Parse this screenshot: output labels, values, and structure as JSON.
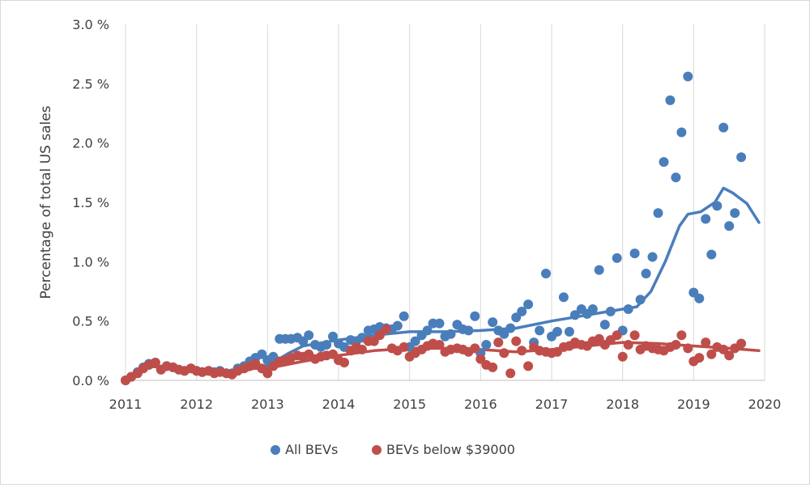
{
  "chart_data": {
    "type": "scatter",
    "title": "",
    "xlabel": "",
    "ylabel": "Percentage of total US sales",
    "xlim": [
      2011,
      2020
    ],
    "ylim": [
      0,
      3.0
    ],
    "grid": "vertical",
    "legend_position": "bottom",
    "x_ticks": [
      2011,
      2012,
      2013,
      2014,
      2015,
      2016,
      2017,
      2018,
      2019,
      2020
    ],
    "x_tick_labels": [
      "2011",
      "2012",
      "2013",
      "2014",
      "2015",
      "2016",
      "2017",
      "2018",
      "2019",
      "2020"
    ],
    "y_ticks": [
      0,
      0.5,
      1.0,
      1.5,
      2.0,
      2.5,
      3.0
    ],
    "y_tick_labels": [
      "0.0 %",
      "0.5 %",
      "1.0 %",
      "1.5 %",
      "2.0 %",
      "2.5 %",
      "3.0 %"
    ],
    "series": [
      {
        "name": "All BEVs",
        "color": "#4a7ebb",
        "points": [
          [
            2011.0,
            0.0
          ],
          [
            2011.08,
            0.03
          ],
          [
            2011.17,
            0.07
          ],
          [
            2011.25,
            0.11
          ],
          [
            2011.33,
            0.14
          ],
          [
            2011.42,
            0.15
          ],
          [
            2011.5,
            0.09
          ],
          [
            2011.58,
            0.12
          ],
          [
            2011.67,
            0.11
          ],
          [
            2011.75,
            0.09
          ],
          [
            2011.83,
            0.08
          ],
          [
            2011.92,
            0.1
          ],
          [
            2012.0,
            0.08
          ],
          [
            2012.08,
            0.07
          ],
          [
            2012.17,
            0.08
          ],
          [
            2012.25,
            0.07
          ],
          [
            2012.33,
            0.08
          ],
          [
            2012.42,
            0.06
          ],
          [
            2012.5,
            0.06
          ],
          [
            2012.58,
            0.1
          ],
          [
            2012.67,
            0.12
          ],
          [
            2012.75,
            0.16
          ],
          [
            2012.83,
            0.19
          ],
          [
            2012.92,
            0.22
          ],
          [
            2013.0,
            0.17
          ],
          [
            2013.08,
            0.2
          ],
          [
            2013.17,
            0.35
          ],
          [
            2013.25,
            0.35
          ],
          [
            2013.33,
            0.35
          ],
          [
            2013.42,
            0.36
          ],
          [
            2013.5,
            0.33
          ],
          [
            2013.58,
            0.38
          ],
          [
            2013.67,
            0.3
          ],
          [
            2013.75,
            0.28
          ],
          [
            2013.83,
            0.3
          ],
          [
            2013.92,
            0.37
          ],
          [
            2014.0,
            0.31
          ],
          [
            2014.08,
            0.28
          ],
          [
            2014.17,
            0.34
          ],
          [
            2014.25,
            0.33
          ],
          [
            2014.33,
            0.36
          ],
          [
            2014.42,
            0.42
          ],
          [
            2014.5,
            0.43
          ],
          [
            2014.58,
            0.45
          ],
          [
            2014.67,
            0.44
          ],
          [
            2014.75,
            0.43
          ],
          [
            2014.83,
            0.46
          ],
          [
            2014.92,
            0.54
          ],
          [
            2015.0,
            0.28
          ],
          [
            2015.08,
            0.33
          ],
          [
            2015.17,
            0.38
          ],
          [
            2015.25,
            0.42
          ],
          [
            2015.33,
            0.48
          ],
          [
            2015.42,
            0.48
          ],
          [
            2015.5,
            0.37
          ],
          [
            2015.58,
            0.39
          ],
          [
            2015.67,
            0.47
          ],
          [
            2015.75,
            0.43
          ],
          [
            2015.83,
            0.42
          ],
          [
            2015.92,
            0.54
          ],
          [
            2016.0,
            0.23
          ],
          [
            2016.08,
            0.3
          ],
          [
            2016.17,
            0.49
          ],
          [
            2016.25,
            0.42
          ],
          [
            2016.33,
            0.39
          ],
          [
            2016.42,
            0.44
          ],
          [
            2016.5,
            0.53
          ],
          [
            2016.58,
            0.58
          ],
          [
            2016.67,
            0.64
          ],
          [
            2016.75,
            0.32
          ],
          [
            2016.83,
            0.42
          ],
          [
            2016.92,
            0.9
          ],
          [
            2017.0,
            0.37
          ],
          [
            2017.08,
            0.41
          ],
          [
            2017.17,
            0.7
          ],
          [
            2017.25,
            0.41
          ],
          [
            2017.33,
            0.55
          ],
          [
            2017.42,
            0.6
          ],
          [
            2017.5,
            0.56
          ],
          [
            2017.58,
            0.6
          ],
          [
            2017.67,
            0.93
          ],
          [
            2017.75,
            0.47
          ],
          [
            2017.83,
            0.58
          ],
          [
            2017.92,
            1.03
          ],
          [
            2018.0,
            0.42
          ],
          [
            2018.08,
            0.6
          ],
          [
            2018.17,
            1.07
          ],
          [
            2018.25,
            0.68
          ],
          [
            2018.33,
            0.9
          ],
          [
            2018.42,
            1.04
          ],
          [
            2018.5,
            1.41
          ],
          [
            2018.58,
            1.84
          ],
          [
            2018.67,
            2.36
          ],
          [
            2018.75,
            1.71
          ],
          [
            2018.83,
            2.09
          ],
          [
            2018.92,
            2.56
          ],
          [
            2019.0,
            0.74
          ],
          [
            2019.08,
            0.69
          ],
          [
            2019.17,
            1.36
          ],
          [
            2019.25,
            1.06
          ],
          [
            2019.33,
            1.47
          ],
          [
            2019.42,
            2.13
          ],
          [
            2019.5,
            1.3
          ],
          [
            2019.58,
            1.41
          ],
          [
            2019.67,
            1.88
          ]
        ],
        "trend": [
          [
            2011.0,
            0.0
          ],
          [
            2011.3,
            0.12
          ],
          [
            2011.5,
            0.11
          ],
          [
            2012.0,
            0.08
          ],
          [
            2012.5,
            0.06
          ],
          [
            2012.8,
            0.13
          ],
          [
            2013.0,
            0.12
          ],
          [
            2013.3,
            0.23
          ],
          [
            2013.5,
            0.29
          ],
          [
            2014.0,
            0.34
          ],
          [
            2014.5,
            0.38
          ],
          [
            2015.0,
            0.41
          ],
          [
            2015.5,
            0.41
          ],
          [
            2016.0,
            0.42
          ],
          [
            2016.5,
            0.44
          ],
          [
            2017.0,
            0.5
          ],
          [
            2017.5,
            0.55
          ],
          [
            2017.8,
            0.58
          ],
          [
            2018.0,
            0.6
          ],
          [
            2018.2,
            0.62
          ],
          [
            2018.4,
            0.75
          ],
          [
            2018.6,
            1.0
          ],
          [
            2018.8,
            1.3
          ],
          [
            2018.92,
            1.4
          ],
          [
            2019.1,
            1.42
          ],
          [
            2019.3,
            1.5
          ],
          [
            2019.42,
            1.62
          ],
          [
            2019.55,
            1.58
          ],
          [
            2019.75,
            1.49
          ],
          [
            2019.92,
            1.33
          ]
        ]
      },
      {
        "name": "BEVs below $39000",
        "color": "#bf4e4b",
        "points": [
          [
            2011.0,
            0.0
          ],
          [
            2011.08,
            0.03
          ],
          [
            2011.17,
            0.06
          ],
          [
            2011.25,
            0.1
          ],
          [
            2011.33,
            0.13
          ],
          [
            2011.42,
            0.15
          ],
          [
            2011.5,
            0.09
          ],
          [
            2011.58,
            0.12
          ],
          [
            2011.67,
            0.11
          ],
          [
            2011.75,
            0.09
          ],
          [
            2011.83,
            0.08
          ],
          [
            2011.92,
            0.1
          ],
          [
            2012.0,
            0.08
          ],
          [
            2012.08,
            0.07
          ],
          [
            2012.17,
            0.08
          ],
          [
            2012.25,
            0.06
          ],
          [
            2012.33,
            0.07
          ],
          [
            2012.42,
            0.06
          ],
          [
            2012.5,
            0.05
          ],
          [
            2012.58,
            0.08
          ],
          [
            2012.67,
            0.1
          ],
          [
            2012.75,
            0.12
          ],
          [
            2012.83,
            0.14
          ],
          [
            2012.92,
            0.1
          ],
          [
            2013.0,
            0.06
          ],
          [
            2013.08,
            0.12
          ],
          [
            2013.17,
            0.16
          ],
          [
            2013.25,
            0.17
          ],
          [
            2013.33,
            0.19
          ],
          [
            2013.42,
            0.21
          ],
          [
            2013.5,
            0.2
          ],
          [
            2013.58,
            0.22
          ],
          [
            2013.67,
            0.18
          ],
          [
            2013.75,
            0.2
          ],
          [
            2013.83,
            0.21
          ],
          [
            2013.92,
            0.22
          ],
          [
            2014.0,
            0.17
          ],
          [
            2014.08,
            0.15
          ],
          [
            2014.17,
            0.25
          ],
          [
            2014.25,
            0.28
          ],
          [
            2014.33,
            0.26
          ],
          [
            2014.42,
            0.33
          ],
          [
            2014.5,
            0.33
          ],
          [
            2014.58,
            0.38
          ],
          [
            2014.67,
            0.43
          ],
          [
            2014.75,
            0.27
          ],
          [
            2014.83,
            0.25
          ],
          [
            2014.92,
            0.28
          ],
          [
            2015.0,
            0.2
          ],
          [
            2015.08,
            0.23
          ],
          [
            2015.17,
            0.26
          ],
          [
            2015.25,
            0.29
          ],
          [
            2015.33,
            0.31
          ],
          [
            2015.42,
            0.3
          ],
          [
            2015.5,
            0.24
          ],
          [
            2015.58,
            0.26
          ],
          [
            2015.67,
            0.27
          ],
          [
            2015.75,
            0.26
          ],
          [
            2015.83,
            0.24
          ],
          [
            2015.92,
            0.27
          ],
          [
            2016.0,
            0.18
          ],
          [
            2016.08,
            0.13
          ],
          [
            2016.17,
            0.11
          ],
          [
            2016.25,
            0.32
          ],
          [
            2016.33,
            0.23
          ],
          [
            2016.42,
            0.06
          ],
          [
            2016.5,
            0.33
          ],
          [
            2016.58,
            0.25
          ],
          [
            2016.67,
            0.12
          ],
          [
            2016.75,
            0.28
          ],
          [
            2016.83,
            0.25
          ],
          [
            2016.92,
            0.24
          ],
          [
            2017.0,
            0.23
          ],
          [
            2017.08,
            0.24
          ],
          [
            2017.17,
            0.28
          ],
          [
            2017.25,
            0.29
          ],
          [
            2017.33,
            0.32
          ],
          [
            2017.42,
            0.3
          ],
          [
            2017.5,
            0.29
          ],
          [
            2017.58,
            0.33
          ],
          [
            2017.67,
            0.35
          ],
          [
            2017.75,
            0.3
          ],
          [
            2017.83,
            0.34
          ],
          [
            2017.92,
            0.38
          ],
          [
            2018.0,
            0.2
          ],
          [
            2018.08,
            0.3
          ],
          [
            2018.17,
            0.38
          ],
          [
            2018.25,
            0.26
          ],
          [
            2018.33,
            0.29
          ],
          [
            2018.42,
            0.27
          ],
          [
            2018.5,
            0.26
          ],
          [
            2018.58,
            0.25
          ],
          [
            2018.67,
            0.28
          ],
          [
            2018.75,
            0.3
          ],
          [
            2018.83,
            0.38
          ],
          [
            2018.92,
            0.27
          ],
          [
            2019.0,
            0.16
          ],
          [
            2019.08,
            0.19
          ],
          [
            2019.17,
            0.32
          ],
          [
            2019.25,
            0.22
          ],
          [
            2019.33,
            0.28
          ],
          [
            2019.42,
            0.26
          ],
          [
            2019.5,
            0.21
          ],
          [
            2019.58,
            0.27
          ],
          [
            2019.67,
            0.31
          ]
        ],
        "trend": [
          [
            2011.0,
            0.0
          ],
          [
            2011.3,
            0.12
          ],
          [
            2011.5,
            0.11
          ],
          [
            2012.0,
            0.08
          ],
          [
            2012.5,
            0.05
          ],
          [
            2012.8,
            0.1
          ],
          [
            2013.0,
            0.1
          ],
          [
            2013.5,
            0.16
          ],
          [
            2014.0,
            0.21
          ],
          [
            2014.5,
            0.25
          ],
          [
            2015.0,
            0.27
          ],
          [
            2015.5,
            0.27
          ],
          [
            2016.0,
            0.26
          ],
          [
            2016.5,
            0.24
          ],
          [
            2017.0,
            0.26
          ],
          [
            2017.5,
            0.29
          ],
          [
            2018.0,
            0.32
          ],
          [
            2018.5,
            0.31
          ],
          [
            2019.0,
            0.29
          ],
          [
            2019.5,
            0.27
          ],
          [
            2019.92,
            0.25
          ]
        ]
      }
    ]
  }
}
